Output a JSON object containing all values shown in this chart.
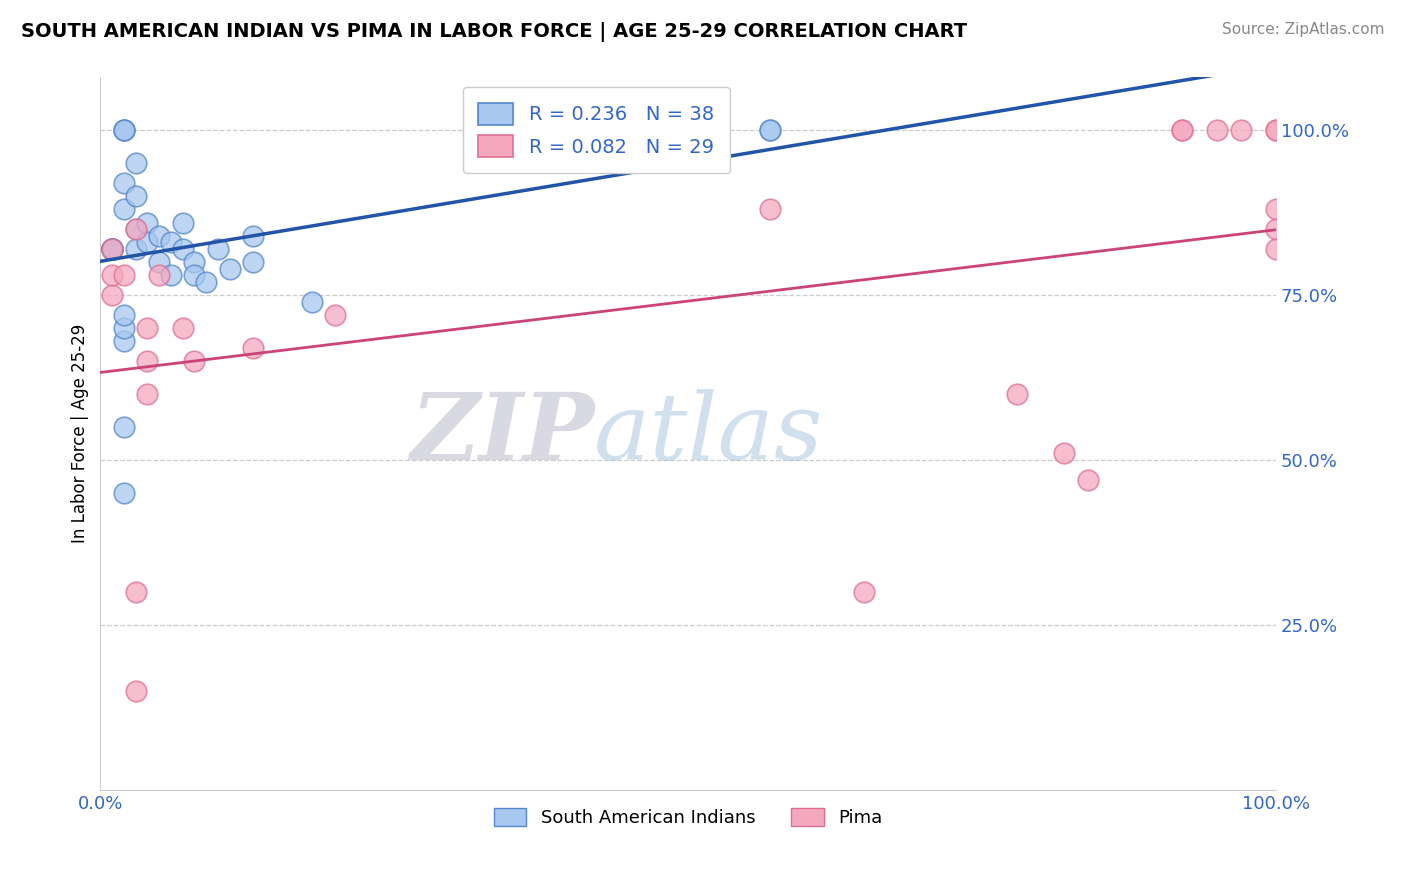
{
  "title": "SOUTH AMERICAN INDIAN VS PIMA IN LABOR FORCE | AGE 25-29 CORRELATION CHART",
  "source_text": "Source: ZipAtlas.com",
  "ylabel": "In Labor Force | Age 25-29",
  "xlim": [
    0.0,
    1.0
  ],
  "ylim": [
    0.0,
    1.08
  ],
  "ytick_labels": [
    "25.0%",
    "50.0%",
    "75.0%",
    "100.0%"
  ],
  "ytick_positions": [
    0.25,
    0.5,
    0.75,
    1.0
  ],
  "blue_r": "0.236",
  "blue_n": "38",
  "pink_r": "0.082",
  "pink_n": "29",
  "legend_label_blue": "South American Indians",
  "legend_label_pink": "Pima",
  "blue_color": "#A8C8F0",
  "pink_color": "#F4A8C0",
  "blue_edge_color": "#5588CC",
  "pink_edge_color": "#E07090",
  "blue_line_color": "#2255AA",
  "pink_line_color": "#CC4477",
  "blue_text_color": "#3366CC",
  "pink_text_color": "#CC4477",
  "blue_scatter_x": [
    0.01,
    0.01,
    0.01,
    0.01,
    0.01,
    0.01,
    0.02,
    0.02,
    0.02,
    0.02,
    0.02,
    0.03,
    0.03,
    0.03,
    0.03,
    0.04,
    0.04,
    0.05,
    0.05,
    0.06,
    0.06,
    0.07,
    0.07,
    0.08,
    0.08,
    0.09,
    0.1,
    0.11,
    0.13,
    0.13,
    0.18,
    0.57,
    0.57,
    0.02,
    0.02,
    0.02,
    0.02,
    0.02
  ],
  "blue_scatter_y": [
    0.82,
    0.82,
    0.82,
    0.82,
    0.82,
    0.82,
    1.0,
    1.0,
    1.0,
    0.92,
    0.88,
    0.95,
    0.9,
    0.85,
    0.82,
    0.86,
    0.83,
    0.84,
    0.8,
    0.83,
    0.78,
    0.86,
    0.82,
    0.8,
    0.78,
    0.77,
    0.82,
    0.79,
    0.84,
    0.8,
    0.74,
    1.0,
    1.0,
    0.55,
    0.45,
    0.68,
    0.7,
    0.72
  ],
  "pink_scatter_x": [
    0.01,
    0.01,
    0.01,
    0.02,
    0.03,
    0.04,
    0.05,
    0.07,
    0.08,
    0.13,
    0.2,
    0.57,
    0.65,
    0.78,
    0.82,
    0.84,
    0.92,
    0.92,
    0.95,
    0.97,
    1.0,
    1.0,
    1.0,
    1.0,
    1.0,
    0.03,
    0.03,
    0.04,
    0.04
  ],
  "pink_scatter_y": [
    0.82,
    0.75,
    0.78,
    0.78,
    0.85,
    0.7,
    0.78,
    0.7,
    0.65,
    0.67,
    0.72,
    0.88,
    0.3,
    0.6,
    0.51,
    0.47,
    1.0,
    1.0,
    1.0,
    1.0,
    1.0,
    1.0,
    0.88,
    0.85,
    0.82,
    0.3,
    0.15,
    0.65,
    0.6
  ],
  "watermark_zip": "ZIP",
  "watermark_atlas": "atlas",
  "background_color": "#FFFFFF",
  "grid_color": "#CCCCCC",
  "spine_color": "#CCCCCC"
}
